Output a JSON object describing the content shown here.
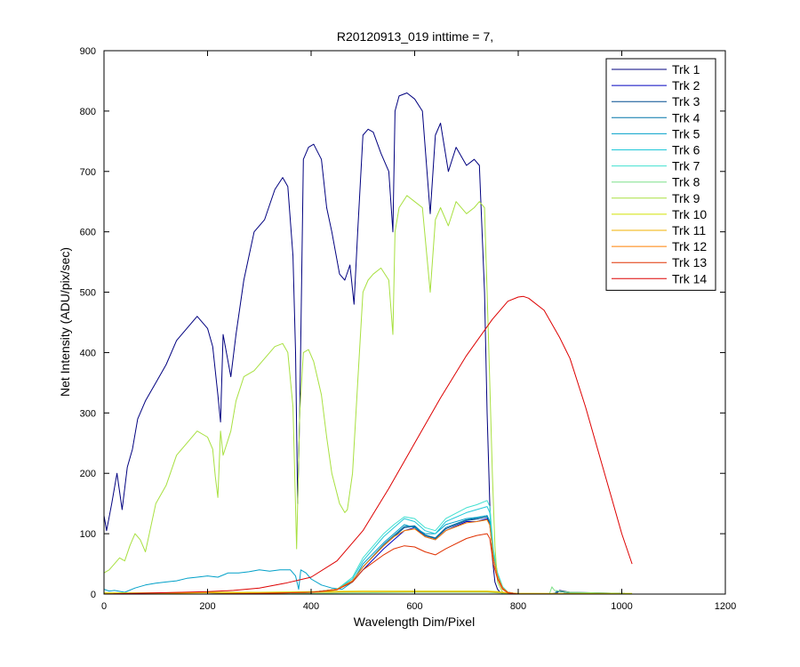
{
  "chart_data": {
    "type": "line",
    "title": "R20120913_019 inttime = 7,",
    "xlabel": "Wavelength Dim/Pixel",
    "ylabel": "Net Intensity (ADU/pix/sec)",
    "xlim": [
      0,
      1200
    ],
    "ylim": [
      0,
      900
    ],
    "xticks": [
      0,
      200,
      400,
      600,
      800,
      1000,
      1200
    ],
    "yticks": [
      0,
      100,
      200,
      300,
      400,
      500,
      600,
      700,
      800,
      900
    ],
    "legend_position": "top-right",
    "grid": false,
    "series": [
      {
        "name": "Trk 1",
        "color": "#00007f",
        "x": [
          0,
          5,
          15,
          25,
          35,
          45,
          55,
          65,
          80,
          100,
          120,
          140,
          160,
          180,
          200,
          210,
          220,
          225,
          230,
          245,
          255,
          270,
          290,
          310,
          330,
          345,
          355,
          365,
          370,
          374,
          378,
          385,
          395,
          405,
          420,
          430,
          440,
          455,
          465,
          475,
          483,
          490,
          500,
          510,
          520,
          535,
          550,
          558,
          562,
          570,
          585,
          600,
          615,
          630,
          640,
          650,
          665,
          680,
          700,
          715,
          725,
          735,
          740,
          745,
          750,
          755,
          760,
          765,
          770,
          780,
          800,
          830,
          860,
          875,
          880,
          900,
          950,
          1000,
          1020
        ],
        "y": [
          130,
          105,
          150,
          200,
          140,
          210,
          240,
          290,
          320,
          350,
          380,
          420,
          440,
          460,
          440,
          410,
          330,
          285,
          430,
          360,
          430,
          520,
          600,
          620,
          670,
          690,
          675,
          560,
          400,
          150,
          300,
          720,
          740,
          745,
          720,
          640,
          600,
          530,
          520,
          545,
          480,
          600,
          760,
          770,
          765,
          730,
          700,
          600,
          800,
          825,
          830,
          820,
          800,
          630,
          760,
          780,
          700,
          740,
          710,
          720,
          710,
          500,
          300,
          150,
          60,
          20,
          8,
          3,
          1,
          0,
          0,
          0,
          0,
          2,
          6,
          3,
          2,
          1,
          0
        ]
      },
      {
        "name": "Trk 2",
        "color": "#0000bf",
        "x": [
          0,
          100,
          200,
          300,
          400,
          450,
          480,
          500,
          540,
          560,
          580,
          600,
          620,
          640,
          660,
          700,
          720,
          740,
          745,
          752,
          760,
          770,
          780,
          800,
          870,
          875,
          900,
          1000,
          1020
        ],
        "y": [
          0,
          0,
          0,
          1,
          3,
          8,
          20,
          40,
          75,
          90,
          105,
          110,
          95,
          90,
          105,
          120,
          120,
          125,
          115,
          60,
          30,
          10,
          3,
          0,
          0,
          5,
          2,
          1,
          0
        ]
      },
      {
        "name": "Trk 3",
        "color": "#004c8f",
        "x": [
          0,
          100,
          200,
          300,
          400,
          450,
          480,
          500,
          540,
          560,
          580,
          600,
          620,
          640,
          660,
          700,
          720,
          740,
          745,
          752,
          760,
          770,
          780,
          800,
          870,
          875,
          900,
          1000,
          1020
        ],
        "y": [
          0,
          0,
          0,
          1,
          3,
          8,
          22,
          45,
          80,
          95,
          110,
          112,
          97,
          92,
          108,
          122,
          124,
          128,
          118,
          62,
          30,
          10,
          3,
          0,
          0,
          5,
          2,
          1,
          0
        ]
      },
      {
        "name": "Trk 4",
        "color": "#0073a8",
        "x": [
          0,
          100,
          200,
          300,
          400,
          450,
          480,
          500,
          540,
          560,
          580,
          600,
          620,
          640,
          660,
          700,
          720,
          740,
          745,
          752,
          760,
          770,
          780,
          800,
          870,
          875,
          900,
          1000,
          1020
        ],
        "y": [
          0,
          0,
          0,
          1,
          3,
          8,
          22,
          45,
          82,
          97,
          112,
          113,
          98,
          93,
          110,
          123,
          126,
          130,
          120,
          63,
          30,
          10,
          3,
          0,
          0,
          5,
          2,
          1,
          0
        ]
      },
      {
        "name": "Trk 5",
        "color": "#00a0c8",
        "x": [
          0,
          10,
          20,
          40,
          60,
          80,
          100,
          120,
          140,
          160,
          180,
          200,
          220,
          240,
          260,
          280,
          300,
          320,
          340,
          360,
          370,
          376,
          380,
          390,
          400,
          420,
          440,
          460,
          480,
          500,
          540,
          560,
          580,
          600,
          620,
          640,
          660,
          700,
          720,
          740,
          745,
          752,
          760,
          770,
          780,
          800,
          870,
          1000,
          1020
        ],
        "y": [
          8,
          5,
          6,
          3,
          10,
          15,
          18,
          20,
          22,
          26,
          28,
          30,
          28,
          35,
          35,
          37,
          40,
          38,
          40,
          40,
          30,
          8,
          40,
          35,
          25,
          15,
          10,
          8,
          20,
          50,
          85,
          100,
          115,
          110,
          100,
          100,
          115,
          125,
          127,
          130,
          120,
          60,
          30,
          10,
          3,
          0,
          0,
          0,
          0
        ]
      },
      {
        "name": "Trk 6",
        "color": "#20c8d8",
        "x": [
          0,
          100,
          200,
          300,
          400,
          450,
          480,
          500,
          540,
          560,
          580,
          600,
          620,
          640,
          660,
          700,
          720,
          740,
          745,
          752,
          760,
          770,
          780,
          800,
          870,
          1000,
          1020
        ],
        "y": [
          0,
          0,
          0,
          1,
          3,
          8,
          25,
          55,
          95,
          110,
          125,
          120,
          105,
          100,
          120,
          135,
          140,
          145,
          135,
          70,
          35,
          12,
          3,
          0,
          0,
          0,
          0
        ]
      },
      {
        "name": "Trk 7",
        "color": "#40e0d0",
        "x": [
          0,
          100,
          200,
          300,
          400,
          450,
          480,
          500,
          540,
          560,
          580,
          600,
          620,
          640,
          660,
          700,
          720,
          740,
          745,
          752,
          760,
          770,
          780,
          800,
          870,
          1000,
          1020
        ],
        "y": [
          0,
          0,
          0,
          1,
          3,
          8,
          28,
          60,
          100,
          115,
          128,
          125,
          110,
          105,
          125,
          143,
          148,
          155,
          145,
          75,
          35,
          12,
          3,
          0,
          0,
          0,
          0
        ]
      },
      {
        "name": "Trk 8",
        "color": "#7fe08a",
        "x": [
          0,
          100,
          200,
          300,
          400,
          500,
          600,
          700,
          740,
          760,
          780,
          800,
          860,
          865,
          870,
          900,
          1000,
          1020
        ],
        "y": [
          0,
          0,
          0,
          0,
          1,
          2,
          3,
          3,
          3,
          2,
          1,
          0,
          0,
          12,
          6,
          3,
          1,
          0
        ]
      },
      {
        "name": "Trk 9",
        "color": "#a8e040",
        "x": [
          0,
          10,
          20,
          30,
          40,
          50,
          60,
          70,
          80,
          100,
          120,
          140,
          160,
          180,
          200,
          210,
          215,
          220,
          225,
          230,
          245,
          255,
          270,
          290,
          310,
          330,
          345,
          355,
          365,
          372,
          378,
          385,
          395,
          405,
          420,
          430,
          440,
          455,
          465,
          470,
          480,
          490,
          500,
          510,
          520,
          535,
          550,
          558,
          562,
          570,
          585,
          600,
          615,
          630,
          640,
          650,
          665,
          680,
          700,
          715,
          725,
          735,
          740,
          745,
          750,
          755,
          760,
          770,
          780,
          800,
          1000,
          1020
        ],
        "y": [
          35,
          40,
          50,
          60,
          55,
          80,
          100,
          90,
          70,
          150,
          180,
          230,
          250,
          270,
          260,
          240,
          195,
          160,
          270,
          230,
          270,
          320,
          360,
          370,
          390,
          410,
          415,
          400,
          310,
          75,
          300,
          400,
          405,
          385,
          330,
          260,
          200,
          150,
          135,
          140,
          200,
          350,
          500,
          520,
          530,
          540,
          520,
          430,
          600,
          640,
          660,
          650,
          640,
          500,
          620,
          640,
          610,
          650,
          630,
          640,
          650,
          640,
          500,
          350,
          200,
          80,
          20,
          3,
          0,
          0,
          0,
          0
        ]
      },
      {
        "name": "Trk 10",
        "color": "#d0e000",
        "x": [
          0,
          100,
          200,
          300,
          400,
          500,
          600,
          700,
          740,
          760,
          780,
          800,
          1000,
          1020
        ],
        "y": [
          2,
          2,
          3,
          3,
          4,
          5,
          5,
          5,
          5,
          4,
          2,
          1,
          1,
          1
        ]
      },
      {
        "name": "Trk 11",
        "color": "#f0b000",
        "x": [
          0,
          100,
          200,
          300,
          400,
          500,
          600,
          700,
          740,
          760,
          780,
          800,
          1000,
          1020
        ],
        "y": [
          1,
          1,
          2,
          2,
          3,
          4,
          4,
          4,
          4,
          3,
          2,
          1,
          0,
          0
        ]
      },
      {
        "name": "Trk 12",
        "color": "#ff7f00",
        "x": [
          0,
          100,
          200,
          300,
          400,
          450,
          480,
          500,
          540,
          560,
          580,
          600,
          620,
          640,
          660,
          700,
          720,
          740,
          745,
          752,
          760,
          770,
          780,
          800,
          1000,
          1020
        ],
        "y": [
          0,
          0,
          0,
          1,
          3,
          8,
          22,
          45,
          80,
          95,
          105,
          108,
          95,
          90,
          105,
          118,
          120,
          123,
          114,
          60,
          30,
          10,
          3,
          0,
          0,
          0
        ]
      },
      {
        "name": "Trk 13",
        "color": "#e03000",
        "x": [
          0,
          100,
          200,
          300,
          400,
          450,
          480,
          500,
          540,
          560,
          580,
          600,
          620,
          640,
          660,
          700,
          720,
          740,
          745,
          752,
          760,
          770,
          780,
          800,
          1000,
          1020
        ],
        "y": [
          0,
          0,
          0,
          1,
          3,
          7,
          20,
          40,
          65,
          75,
          80,
          78,
          70,
          65,
          75,
          92,
          97,
          100,
          92,
          50,
          25,
          8,
          2,
          0,
          0,
          0
        ]
      },
      {
        "name": "Trk 14",
        "color": "#dd0000",
        "x": [
          0,
          100,
          150,
          200,
          250,
          300,
          350,
          400,
          450,
          500,
          550,
          600,
          650,
          700,
          750,
          780,
          800,
          810,
          820,
          850,
          880,
          900,
          930,
          960,
          980,
          1000,
          1010,
          1020
        ],
        "y": [
          0,
          2,
          3,
          4,
          6,
          10,
          18,
          28,
          55,
          105,
          175,
          250,
          325,
          395,
          455,
          485,
          492,
          493,
          490,
          470,
          425,
          390,
          310,
          220,
          160,
          100,
          75,
          50
        ]
      }
    ],
    "legend_entries": [
      "Trk 1",
      "Trk 2",
      "Trk 3",
      "Trk 4",
      "Trk 5",
      "Trk 6",
      "Trk 7",
      "Trk 8",
      "Trk 9",
      "Trk 10",
      "Trk 11",
      "Trk 12",
      "Trk 13",
      "Trk 14"
    ]
  }
}
